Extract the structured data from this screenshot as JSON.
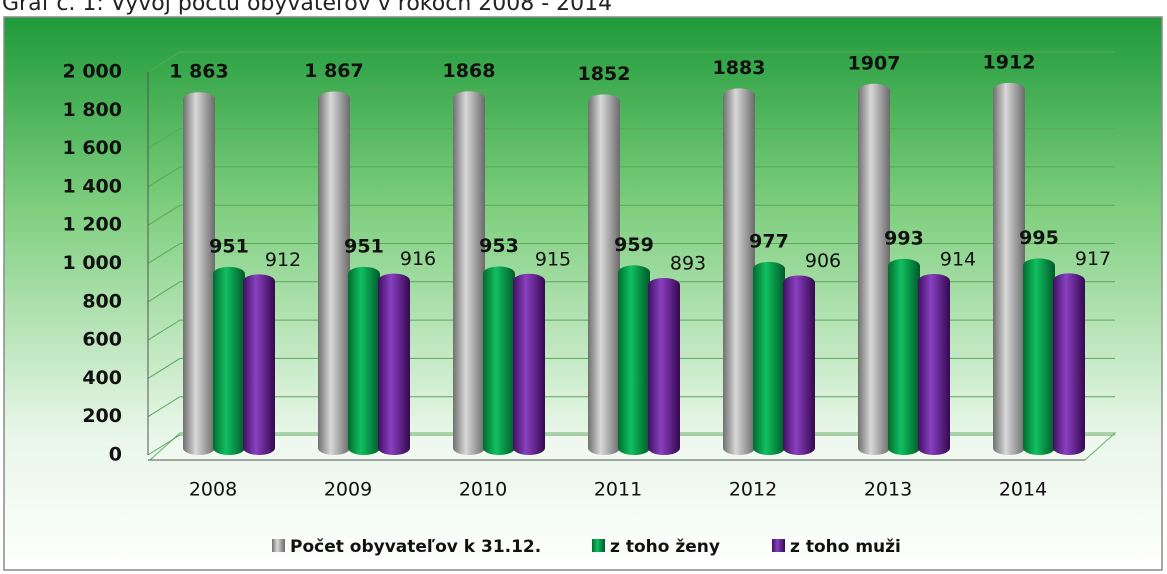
{
  "chart_data": {
    "type": "bar",
    "title": "Graf č. 1: Vývoj počtu obyvateľov v rokoch 2008 - 2014",
    "categories": [
      "2008",
      "2009",
      "2010",
      "2011",
      "2012",
      "2013",
      "2014"
    ],
    "series": [
      {
        "name": "Počet obyvateľov k 31.12.",
        "color": "#a6a6a6",
        "values": [
          1863,
          1867,
          1868,
          1852,
          1883,
          1907,
          1912
        ],
        "value_labels": [
          "1 863",
          "1 867",
          "1868",
          "1852",
          "1883",
          "1907",
          "1912"
        ]
      },
      {
        "name": "z toho ženy",
        "color": "#00a550",
        "values": [
          951,
          951,
          953,
          959,
          977,
          993,
          995
        ]
      },
      {
        "name": "z toho muži",
        "color": "#7030a0",
        "values": [
          912,
          916,
          915,
          893,
          906,
          914,
          917
        ]
      }
    ],
    "ylim": [
      0,
      2000
    ],
    "yticks": [
      0,
      200,
      400,
      600,
      800,
      {
        "value": 1000,
        "label": "1 000"
      },
      {
        "value": 1200,
        "label": "1 200"
      },
      {
        "value": 1400,
        "label": "1 400"
      },
      {
        "value": 1600,
        "label": "1 600"
      },
      {
        "value": 1800,
        "label": "1 800"
      },
      {
        "value": 2000,
        "label": "2 000"
      }
    ],
    "grid": true,
    "legend": "bottom"
  }
}
